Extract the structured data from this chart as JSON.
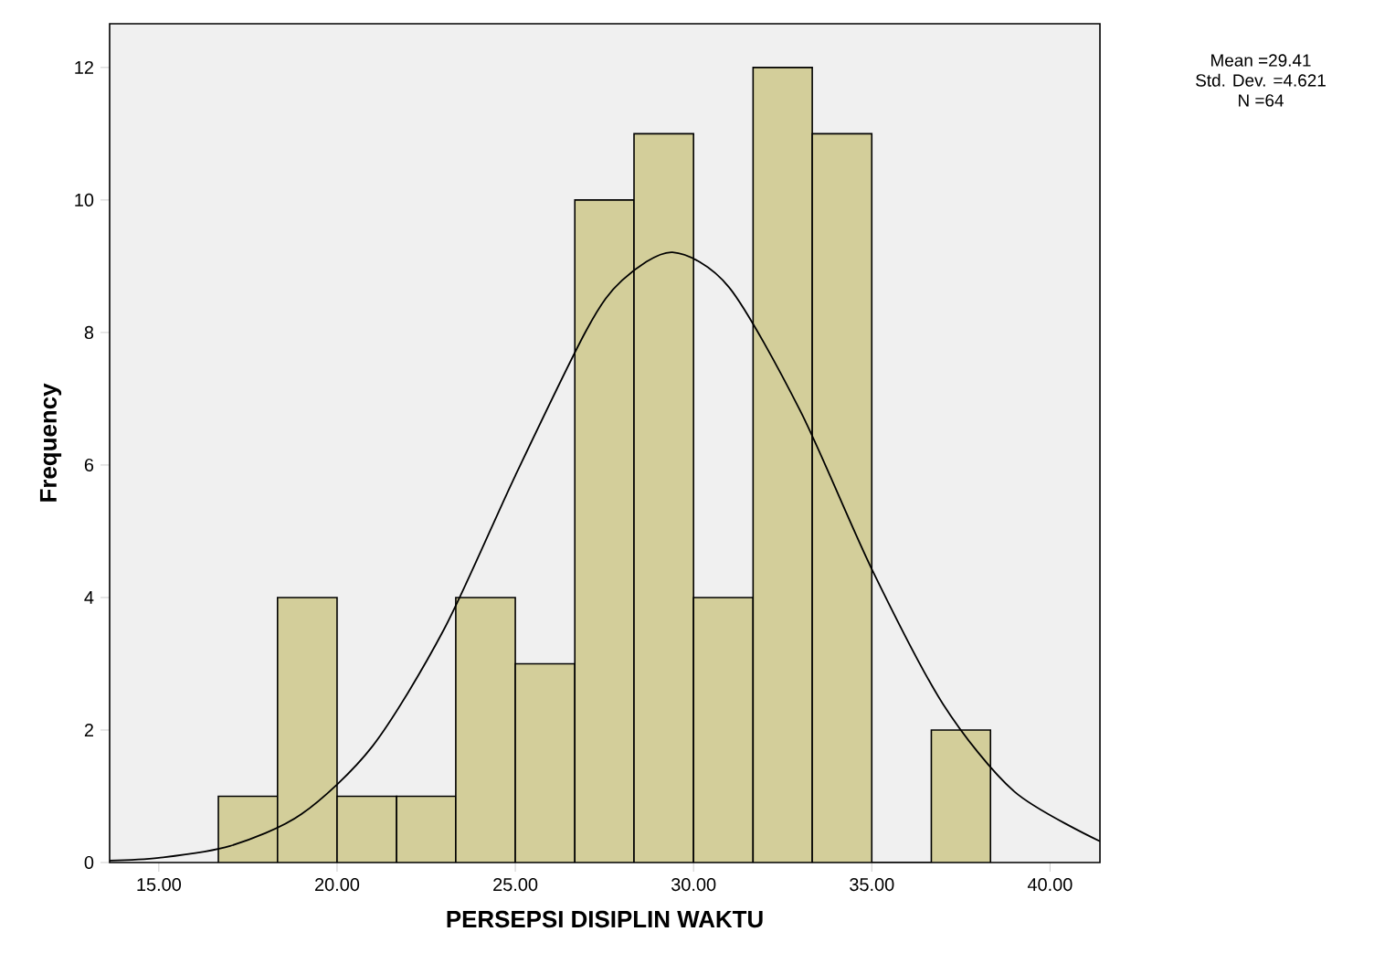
{
  "chart_data": {
    "type": "histogram",
    "xlabel": "PERSEPSI DISIPLIN WAKTU",
    "ylabel": "Frequency",
    "bins": [
      16.67,
      18.33,
      20.0,
      21.67,
      23.33,
      25.0,
      26.67,
      28.33,
      30.0,
      31.67,
      33.33,
      35.0,
      36.67,
      38.33
    ],
    "values": [
      1,
      4,
      1,
      1,
      4,
      3,
      10,
      11,
      4,
      12,
      11,
      0,
      2
    ],
    "color": "#d3ce9a",
    "series": [
      {
        "type": "line",
        "color": "#000000",
        "x": [
          13.62,
          15,
          17,
          19,
          21,
          23,
          25,
          27,
          28,
          29.41,
          31,
          33,
          35,
          37,
          39,
          41.4
        ],
        "values": [
          0.03,
          0.07,
          0.25,
          0.73,
          1.76,
          3.52,
          5.84,
          8.04,
          8.79,
          9.21,
          8.68,
          6.81,
          4.43,
          2.39,
          1.07,
          0.32
        ]
      }
    ],
    "xlim": [
      13.62,
      41.4
    ],
    "ylim": [
      0,
      12.66
    ],
    "xticks": [
      {
        "value": 15,
        "label": "15.00"
      },
      {
        "value": 20,
        "label": "20.00"
      },
      {
        "value": 25,
        "label": "25.00"
      },
      {
        "value": 30,
        "label": "30.00"
      },
      {
        "value": 35,
        "label": "35.00"
      },
      {
        "value": 40,
        "label": "40.00"
      }
    ],
    "yticks": [
      0,
      2,
      4,
      6,
      8,
      10,
      12
    ],
    "annotations": [
      "Mean =29.41",
      "Std. Dev. =4.621",
      "N =64"
    ]
  }
}
